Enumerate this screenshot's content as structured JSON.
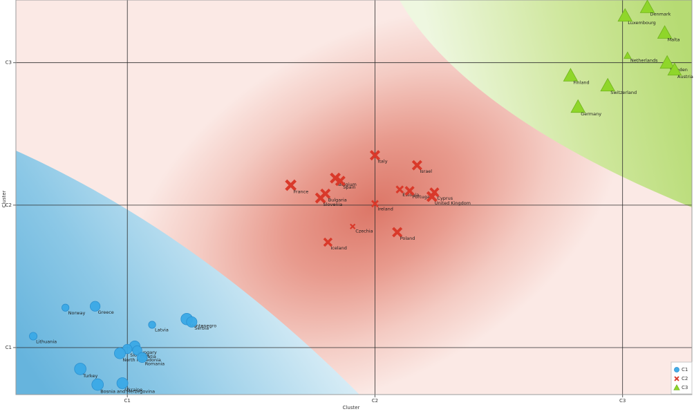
{
  "chart_data": {
    "type": "scatter",
    "title": "",
    "xlabel": "Cluster",
    "ylabel": "Cluster",
    "x_ticks": [
      {
        "label": "C1",
        "value": 1
      },
      {
        "label": "C2",
        "value": 2
      },
      {
        "label": "C3",
        "value": 3
      }
    ],
    "y_ticks": [
      {
        "label": "C1",
        "value": 1
      },
      {
        "label": "C2",
        "value": 2
      },
      {
        "label": "C3",
        "value": 3
      }
    ],
    "xlim": [
      0.55,
      3.28
    ],
    "ylim": [
      0.67,
      3.44
    ],
    "grid": true,
    "legend_position": "bottom-right",
    "background": "class probability regions (C1 blue, C2 red, C3 green)",
    "series": [
      {
        "name": "C1",
        "marker": "circle",
        "color": "#3aa9e6",
        "points": [
          {
            "label": "Norway",
            "x": 0.75,
            "y": 1.28,
            "size": 0.4
          },
          {
            "label": "Greece",
            "x": 0.87,
            "y": 1.29,
            "size": 0.65
          },
          {
            "label": "Lithuania",
            "x": 0.62,
            "y": 1.08,
            "size": 0.45
          },
          {
            "label": "Latvia",
            "x": 1.1,
            "y": 1.16,
            "size": 0.4
          },
          {
            "label": "Montenegro",
            "x": 1.24,
            "y": 1.2,
            "size": 0.8
          },
          {
            "label": "Serbia",
            "x": 1.26,
            "y": 1.18,
            "size": 0.7
          },
          {
            "label": "Hungary",
            "x": 1.03,
            "y": 1.01,
            "size": 0.7
          },
          {
            "label": "Slovakia",
            "x": 1.0,
            "y": 0.99,
            "size": 0.6
          },
          {
            "label": "Croatia",
            "x": 1.04,
            "y": 0.98,
            "size": 0.6
          },
          {
            "label": "North Macedonia",
            "x": 0.97,
            "y": 0.96,
            "size": 0.75
          },
          {
            "label": "Romania",
            "x": 1.06,
            "y": 0.93,
            "size": 0.65
          },
          {
            "label": "Turkey",
            "x": 0.81,
            "y": 0.85,
            "size": 0.8
          },
          {
            "label": "Ukraine",
            "x": 0.98,
            "y": 0.75,
            "size": 0.75
          },
          {
            "label": "Bosnia and Herzegovina",
            "x": 0.88,
            "y": 0.74,
            "size": 0.8
          }
        ]
      },
      {
        "name": "C2",
        "marker": "cross",
        "color": "#d9392a",
        "points": [
          {
            "label": "Italy",
            "x": 2.0,
            "y": 2.35,
            "size": 0.65
          },
          {
            "label": "Israel",
            "x": 2.17,
            "y": 2.28,
            "size": 0.65
          },
          {
            "label": "Belgium",
            "x": 1.84,
            "y": 2.19,
            "size": 0.7
          },
          {
            "label": "Spain",
            "x": 1.86,
            "y": 2.17,
            "size": 0.65
          },
          {
            "label": "France",
            "x": 1.66,
            "y": 2.14,
            "size": 0.75
          },
          {
            "label": "Bulgaria",
            "x": 1.8,
            "y": 2.08,
            "size": 0.65
          },
          {
            "label": "Slovenia",
            "x": 1.78,
            "y": 2.05,
            "size": 0.7
          },
          {
            "label": "Estonia",
            "x": 2.1,
            "y": 2.11,
            "size": 0.45
          },
          {
            "label": "Portugal",
            "x": 2.14,
            "y": 2.1,
            "size": 0.6
          },
          {
            "label": "Cyprus",
            "x": 2.24,
            "y": 2.09,
            "size": 0.6
          },
          {
            "label": "United Kingdom",
            "x": 2.23,
            "y": 2.06,
            "size": 0.7
          },
          {
            "label": "Ireland",
            "x": 2.0,
            "y": 2.01,
            "size": 0.4
          },
          {
            "label": "Czechia",
            "x": 1.91,
            "y": 1.85,
            "size": 0.25
          },
          {
            "label": "Poland",
            "x": 2.09,
            "y": 1.81,
            "size": 0.65
          },
          {
            "label": "Iceland",
            "x": 1.81,
            "y": 1.74,
            "size": 0.55
          }
        ]
      },
      {
        "name": "C3",
        "marker": "triangle",
        "color": "#8fd62a",
        "points": [
          {
            "label": "Denmark",
            "x": 3.1,
            "y": 3.39,
            "size": 0.85
          },
          {
            "label": "Luxembourg",
            "x": 3.01,
            "y": 3.33,
            "size": 0.85
          },
          {
            "label": "Malta",
            "x": 3.17,
            "y": 3.21,
            "size": 0.85
          },
          {
            "label": "Netherlands",
            "x": 3.02,
            "y": 3.05,
            "size": 0.3
          },
          {
            "label": "Sweden",
            "x": 3.18,
            "y": 3.0,
            "size": 0.85
          },
          {
            "label": "Austria",
            "x": 3.21,
            "y": 2.95,
            "size": 0.8
          },
          {
            "label": "Finland",
            "x": 2.79,
            "y": 2.91,
            "size": 0.85
          },
          {
            "label": "Switzerland",
            "x": 2.94,
            "y": 2.84,
            "size": 0.85
          },
          {
            "label": "Germany",
            "x": 2.82,
            "y": 2.69,
            "size": 0.85
          }
        ]
      }
    ]
  }
}
